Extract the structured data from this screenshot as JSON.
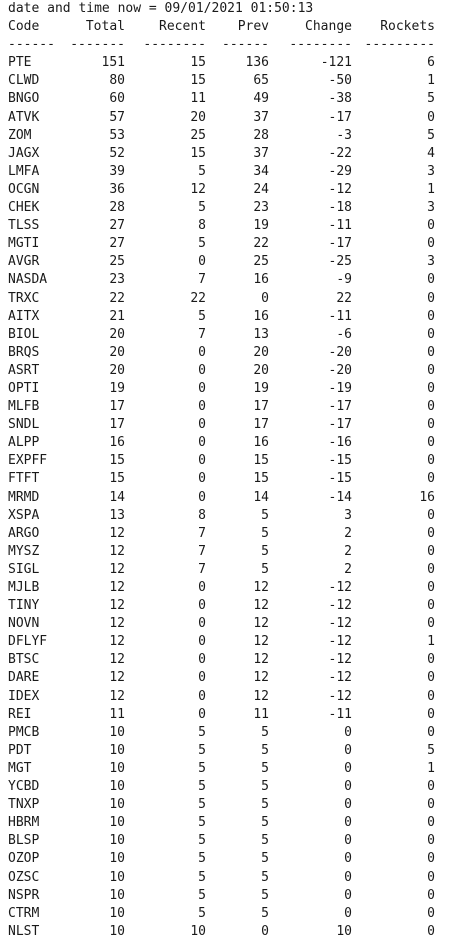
{
  "header": {
    "timestamp_line": "date and time now = 09/01/2021 01:50:13",
    "columns": [
      "Code",
      "Total",
      "Recent",
      "Prev",
      "Change",
      "Rockets"
    ],
    "separators": [
      "------",
      "-------",
      "--------",
      "------",
      "--------",
      "---------"
    ]
  },
  "rows": [
    [
      "PTE",
      "151",
      "15",
      "136",
      "-121",
      "6"
    ],
    [
      "CLWD",
      "80",
      "15",
      "65",
      "-50",
      "1"
    ],
    [
      "BNGO",
      "60",
      "11",
      "49",
      "-38",
      "5"
    ],
    [
      "ATVK",
      "57",
      "20",
      "37",
      "-17",
      "0"
    ],
    [
      "ZOM",
      "53",
      "25",
      "28",
      "-3",
      "5"
    ],
    [
      "JAGX",
      "52",
      "15",
      "37",
      "-22",
      "4"
    ],
    [
      "LMFA",
      "39",
      "5",
      "34",
      "-29",
      "3"
    ],
    [
      "OCGN",
      "36",
      "12",
      "24",
      "-12",
      "1"
    ],
    [
      "CHEK",
      "28",
      "5",
      "23",
      "-18",
      "3"
    ],
    [
      "TLSS",
      "27",
      "8",
      "19",
      "-11",
      "0"
    ],
    [
      "MGTI",
      "27",
      "5",
      "22",
      "-17",
      "0"
    ],
    [
      "AVGR",
      "25",
      "0",
      "25",
      "-25",
      "3"
    ],
    [
      "NASDA",
      "23",
      "7",
      "16",
      "-9",
      "0"
    ],
    [
      "TRXC",
      "22",
      "22",
      "0",
      "22",
      "0"
    ],
    [
      "AITX",
      "21",
      "5",
      "16",
      "-11",
      "0"
    ],
    [
      "BIOL",
      "20",
      "7",
      "13",
      "-6",
      "0"
    ],
    [
      "BRQS",
      "20",
      "0",
      "20",
      "-20",
      "0"
    ],
    [
      "ASRT",
      "20",
      "0",
      "20",
      "-20",
      "0"
    ],
    [
      "OPTI",
      "19",
      "0",
      "19",
      "-19",
      "0"
    ],
    [
      "MLFB",
      "17",
      "0",
      "17",
      "-17",
      "0"
    ],
    [
      "SNDL",
      "17",
      "0",
      "17",
      "-17",
      "0"
    ],
    [
      "ALPP",
      "16",
      "0",
      "16",
      "-16",
      "0"
    ],
    [
      "EXPFF",
      "15",
      "0",
      "15",
      "-15",
      "0"
    ],
    [
      "FTFT",
      "15",
      "0",
      "15",
      "-15",
      "0"
    ],
    [
      "MRMD",
      "14",
      "0",
      "14",
      "-14",
      "16"
    ],
    [
      "XSPA",
      "13",
      "8",
      "5",
      "3",
      "0"
    ],
    [
      "ARGO",
      "12",
      "7",
      "5",
      "2",
      "0"
    ],
    [
      "MYSZ",
      "12",
      "7",
      "5",
      "2",
      "0"
    ],
    [
      "SIGL",
      "12",
      "7",
      "5",
      "2",
      "0"
    ],
    [
      "MJLB",
      "12",
      "0",
      "12",
      "-12",
      "0"
    ],
    [
      "TINY",
      "12",
      "0",
      "12",
      "-12",
      "0"
    ],
    [
      "NOVN",
      "12",
      "0",
      "12",
      "-12",
      "0"
    ],
    [
      "DFLYF",
      "12",
      "0",
      "12",
      "-12",
      "1"
    ],
    [
      "BTSC",
      "12",
      "0",
      "12",
      "-12",
      "0"
    ],
    [
      "DARE",
      "12",
      "0",
      "12",
      "-12",
      "0"
    ],
    [
      "IDEX",
      "12",
      "0",
      "12",
      "-12",
      "0"
    ],
    [
      "REI",
      "11",
      "0",
      "11",
      "-11",
      "0"
    ],
    [
      "PMCB",
      "10",
      "5",
      "5",
      "0",
      "0"
    ],
    [
      "PDT",
      "10",
      "5",
      "5",
      "0",
      "5"
    ],
    [
      "MGT",
      "10",
      "5",
      "5",
      "0",
      "1"
    ],
    [
      "YCBD",
      "10",
      "5",
      "5",
      "0",
      "0"
    ],
    [
      "TNXP",
      "10",
      "5",
      "5",
      "0",
      "0"
    ],
    [
      "HBRM",
      "10",
      "5",
      "5",
      "0",
      "0"
    ],
    [
      "BLSP",
      "10",
      "5",
      "5",
      "0",
      "0"
    ],
    [
      "OZOP",
      "10",
      "5",
      "5",
      "0",
      "0"
    ],
    [
      "OZSC",
      "10",
      "5",
      "5",
      "0",
      "0"
    ],
    [
      "NSPR",
      "10",
      "5",
      "5",
      "0",
      "0"
    ],
    [
      "CTRM",
      "10",
      "5",
      "5",
      "0",
      "0"
    ],
    [
      "NLST",
      "10",
      "10",
      "0",
      "10",
      "0"
    ]
  ]
}
